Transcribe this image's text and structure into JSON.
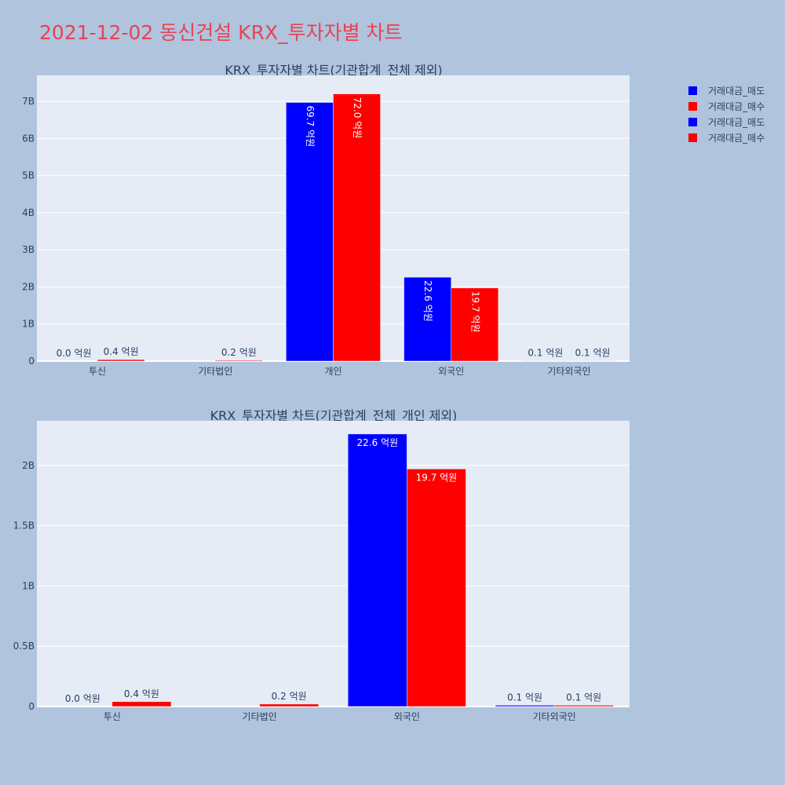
{
  "page": {
    "title": "2021-12-02 동신건설 KRX_투자자별 차트"
  },
  "colors": {
    "sell": "#0000ff",
    "buy": "#ff0000",
    "background": "#b0c4de",
    "plot_bg": "#e5ecf6",
    "text": "#2a3f5f"
  },
  "legend": {
    "placement": "top-right",
    "items": [
      {
        "label": "거래대금_매도",
        "color": "#0000ff"
      },
      {
        "label": "거래대금_매수",
        "color": "#ff0000"
      },
      {
        "label": "거래대금_매도",
        "color": "#0000ff"
      },
      {
        "label": "거래대금_매수",
        "color": "#ff0000"
      }
    ]
  },
  "chart_data": [
    {
      "type": "bar",
      "title": "KRX_투자자별 차트(기관합계_전체 제외)",
      "categories": [
        "투신",
        "기타법인",
        "개인",
        "외국인",
        "기타외국인"
      ],
      "ylim": [
        0,
        7.7
      ],
      "yunit": "B",
      "yticks": [
        0,
        1,
        2,
        3,
        4,
        5,
        6,
        7
      ],
      "ytick_labels": [
        "0",
        "1B",
        "2B",
        "3B",
        "4B",
        "5B",
        "6B",
        "7B"
      ],
      "grid": true,
      "series": [
        {
          "name": "거래대금_매도",
          "values": [
            0.0,
            0.0,
            6.97,
            2.26,
            0.01
          ],
          "labels": [
            "0.0 억원",
            "",
            "69.7 억원",
            "22.6 억원",
            "0.1 억원"
          ]
        },
        {
          "name": "거래대금_매수",
          "values": [
            0.04,
            0.02,
            7.2,
            1.97,
            0.01
          ],
          "labels": [
            "0.4 억원",
            "0.2 억원",
            "72.0 억원",
            "19.7 억원",
            "0.1 억원"
          ]
        }
      ]
    },
    {
      "type": "bar",
      "title": "KRX_투자자별 차트(기관합계_전체_개인 제외)",
      "categories": [
        "투신",
        "기타법인",
        "외국인",
        "기타외국인"
      ],
      "ylim": [
        0,
        2.37
      ],
      "yunit": "B",
      "yticks": [
        0,
        0.5,
        1,
        1.5,
        2
      ],
      "ytick_labels": [
        "0",
        "0.5B",
        "1B",
        "1.5B",
        "2B"
      ],
      "grid": true,
      "series": [
        {
          "name": "거래대금_매도",
          "values": [
            0.0,
            0.0,
            2.26,
            0.01
          ],
          "labels": [
            "0.0 억원",
            "",
            "22.6 억원",
            "0.1 억원"
          ]
        },
        {
          "name": "거래대금_매수",
          "values": [
            0.04,
            0.02,
            1.97,
            0.01
          ],
          "labels": [
            "0.4 억원",
            "0.2 억원",
            "19.7 억원",
            "0.1 억원"
          ]
        }
      ]
    }
  ]
}
